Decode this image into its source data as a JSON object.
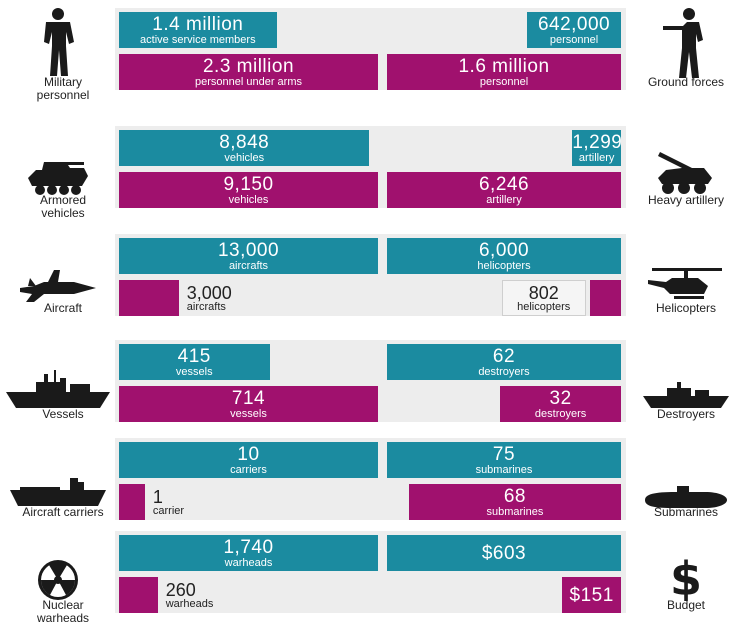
{
  "colors": {
    "usa": "#1b8ba0",
    "russia": "#a0116e",
    "panel": "#ededed",
    "icon": "#1a1a1a"
  },
  "chart_data": {
    "type": "bar",
    "rows": [
      {
        "left_label": "Military personnel",
        "left_icon": "soldier-icon",
        "right_label": "Ground forces",
        "right_icon": "rifleman-icon",
        "left": [
          {
            "series": "usa",
            "value": 1400000,
            "text": "1.4 million",
            "unit": "active service members"
          },
          {
            "series": "russia",
            "value": 2300000,
            "text": "2.3 million",
            "unit": "personnel under arms"
          }
        ],
        "right": [
          {
            "series": "usa",
            "value": 642000,
            "text": "642,000",
            "unit": "personnel"
          },
          {
            "series": "russia",
            "value": 1600000,
            "text": "1.6 million",
            "unit": "personnel"
          }
        ]
      },
      {
        "left_label": "Armored vehicles",
        "left_icon": "armored-vehicle-icon",
        "right_label": "Heavy artillery",
        "right_icon": "artillery-icon",
        "left": [
          {
            "series": "usa",
            "value": 8848,
            "text": "8,848",
            "unit": "vehicles"
          },
          {
            "series": "russia",
            "value": 9150,
            "text": "9,150",
            "unit": "vehicles"
          }
        ],
        "right": [
          {
            "series": "usa",
            "value": 1299,
            "text": "1,299",
            "unit": "artillery"
          },
          {
            "series": "russia",
            "value": 6246,
            "text": "6,246",
            "unit": "artillery"
          }
        ]
      },
      {
        "left_label": "Aircraft",
        "left_icon": "fighter-jet-icon",
        "right_label": "Helicopters",
        "right_icon": "helicopter-icon",
        "left": [
          {
            "series": "usa",
            "value": 13000,
            "text": "13,000",
            "unit": "aircrafts"
          },
          {
            "series": "russia",
            "value": 3000,
            "text": "3,000",
            "unit": "aircrafts"
          }
        ],
        "right": [
          {
            "series": "usa",
            "value": 6000,
            "text": "6,000",
            "unit": "helicopters"
          },
          {
            "series": "russia",
            "value": 802,
            "text": "802",
            "unit": "helicopters"
          }
        ]
      },
      {
        "left_label": "Vessels",
        "left_icon": "warship-icon",
        "right_label": "Destroyers",
        "right_icon": "destroyer-icon",
        "left": [
          {
            "series": "usa",
            "value": 415,
            "text": "415",
            "unit": "vessels"
          },
          {
            "series": "russia",
            "value": 714,
            "text": "714",
            "unit": "vessels"
          }
        ],
        "right": [
          {
            "series": "usa",
            "value": 62,
            "text": "62",
            "unit": "destroyers"
          },
          {
            "series": "russia",
            "value": 32,
            "text": "32",
            "unit": "destroyers"
          }
        ]
      },
      {
        "left_label": "Aircraft carriers",
        "left_icon": "aircraft-carrier-icon",
        "right_label": "Submarines",
        "right_icon": "submarine-icon",
        "left": [
          {
            "series": "usa",
            "value": 10,
            "text": "10",
            "unit": "carriers"
          },
          {
            "series": "russia",
            "value": 1,
            "text": "1",
            "unit": "carrier"
          }
        ],
        "right": [
          {
            "series": "usa",
            "value": 75,
            "text": "75",
            "unit": "submarines"
          },
          {
            "series": "russia",
            "value": 68,
            "text": "68",
            "unit": "submarines"
          }
        ]
      },
      {
        "left_label": "Nuclear warheads",
        "left_icon": "radiation-icon",
        "right_label": "Budget",
        "right_icon": "dollar-icon",
        "left": [
          {
            "series": "usa",
            "value": 1740,
            "text": "1,740",
            "unit": "warheads"
          },
          {
            "series": "russia",
            "value": 260,
            "text": "260",
            "unit": "warheads"
          }
        ],
        "right": [
          {
            "series": "usa",
            "value": 603,
            "text": "$603",
            "unit": ""
          },
          {
            "series": "russia",
            "value": 151,
            "text": "$151",
            "unit": ""
          }
        ]
      }
    ]
  }
}
